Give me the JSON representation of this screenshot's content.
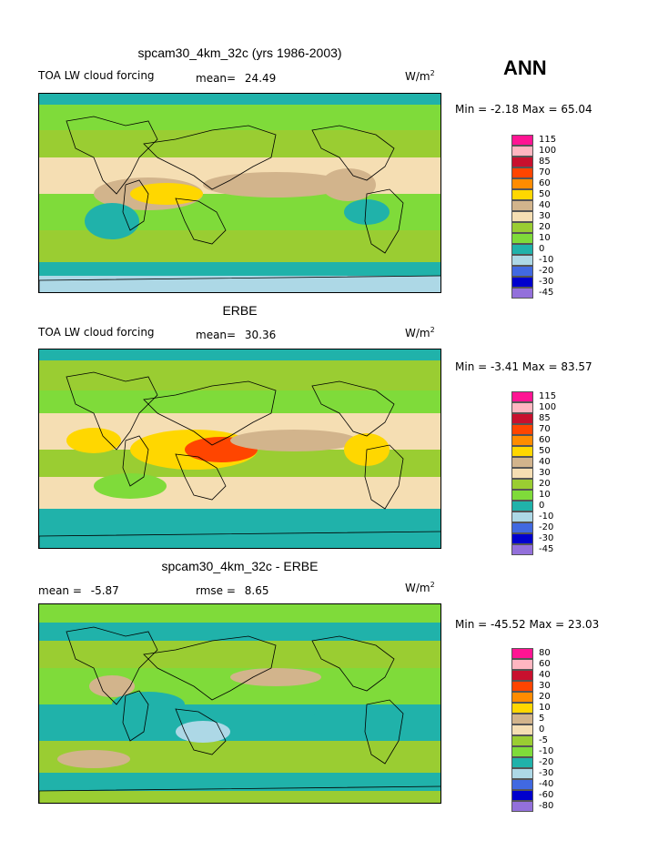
{
  "season": "ANN",
  "panels": [
    {
      "title": "spcam30_4km_32c (yrs 1986-2003)",
      "left_label": "TOA LW cloud forcing",
      "stat_label": "mean=",
      "stat_value": "24.49",
      "stat2_label": "",
      "stat2_value": "",
      "units": "W/m",
      "units_sup": "2",
      "minmax": "Min =   -2.18  Max =   65.04",
      "colorbar": [
        "115",
        "100",
        "85",
        "70",
        "60",
        "50",
        "40",
        "30",
        "20",
        "10",
        "0",
        "-10",
        "-20",
        "-30",
        "-45"
      ]
    },
    {
      "title": "ERBE",
      "left_label": "TOA LW cloud forcing",
      "stat_label": "mean=",
      "stat_value": "30.36",
      "stat2_label": "",
      "stat2_value": "",
      "units": "W/m",
      "units_sup": "2",
      "minmax": "Min =   -3.41  Max =   83.57",
      "colorbar": [
        "115",
        "100",
        "85",
        "70",
        "60",
        "50",
        "40",
        "30",
        "20",
        "10",
        "0",
        "-10",
        "-20",
        "-30",
        "-45"
      ]
    },
    {
      "title": "spcam30_4km_32c - ERBE",
      "left_label": "",
      "stat_label": "mean =",
      "stat_value": "-5.87",
      "stat2_label": "rmse =",
      "stat2_value": "8.65",
      "units": "W/m",
      "units_sup": "2",
      "minmax": "Min = -45.52  Max =   23.03",
      "colorbar": [
        "80",
        "60",
        "40",
        "30",
        "20",
        "10",
        "5",
        "0",
        "-5",
        "-10",
        "-20",
        "-30",
        "-40",
        "-60",
        "-80"
      ]
    }
  ],
  "colors": {
    "scale": [
      "#ff1493",
      "#ffb6c1",
      "#c8102e",
      "#ff4500",
      "#ff8c00",
      "#ffd700",
      "#d2b48c",
      "#f5deb3",
      "#9acd32",
      "#7fdb3a",
      "#20b2aa",
      "#add8e6",
      "#4169e1",
      "#0000cd",
      "#9370db"
    ],
    "coast": "#000000"
  },
  "chart_data": {
    "type": "heatmap",
    "maps": [
      {
        "name": "spcam30_4km_32c (yrs 1986-2003)",
        "mean": 24.49,
        "min": -2.18,
        "max": 65.04,
        "levels": [
          115,
          100,
          85,
          70,
          60,
          50,
          40,
          30,
          20,
          10,
          0,
          -10,
          -20,
          -30,
          -45
        ]
      },
      {
        "name": "ERBE",
        "mean": 30.36,
        "min": -3.41,
        "max": 83.57,
        "levels": [
          115,
          100,
          85,
          70,
          60,
          50,
          40,
          30,
          20,
          10,
          0,
          -10,
          -20,
          -30,
          -45
        ]
      },
      {
        "name": "spcam30_4km_32c - ERBE",
        "mean": -5.87,
        "rmse": 8.65,
        "min": -45.52,
        "max": 23.03,
        "levels": [
          80,
          60,
          40,
          30,
          20,
          10,
          5,
          0,
          -5,
          -10,
          -20,
          -30,
          -40,
          -60,
          -80
        ]
      }
    ]
  }
}
